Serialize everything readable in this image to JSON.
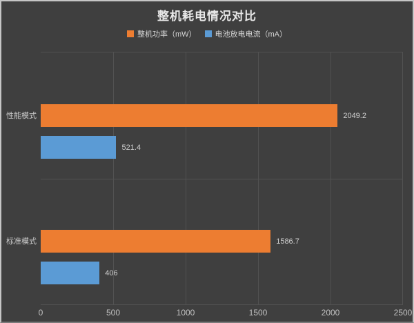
{
  "window": {
    "background": "#3f3f3f",
    "border_color": "#c6c6c6"
  },
  "chart_data": {
    "type": "bar",
    "orientation": "horizontal",
    "title": "整机耗电情况对比",
    "categories": [
      "性能模式",
      "标准模式"
    ],
    "series": [
      {
        "name": "整机功率（mW）",
        "color": "#ED7D31",
        "values": [
          2049.2,
          1586.7
        ]
      },
      {
        "name": "电池放电电流（mA）",
        "color": "#5B9BD5",
        "values": [
          521.4,
          406
        ]
      }
    ],
    "xlim": [
      0,
      2500
    ],
    "x_ticks": [
      "0",
      "500",
      "1000",
      "1500",
      "2000",
      "2500"
    ],
    "grid": true,
    "gridline_color": "#525252",
    "legend_position": "top",
    "text_color": "#d6d6d6",
    "background": "#3f3f3f"
  }
}
